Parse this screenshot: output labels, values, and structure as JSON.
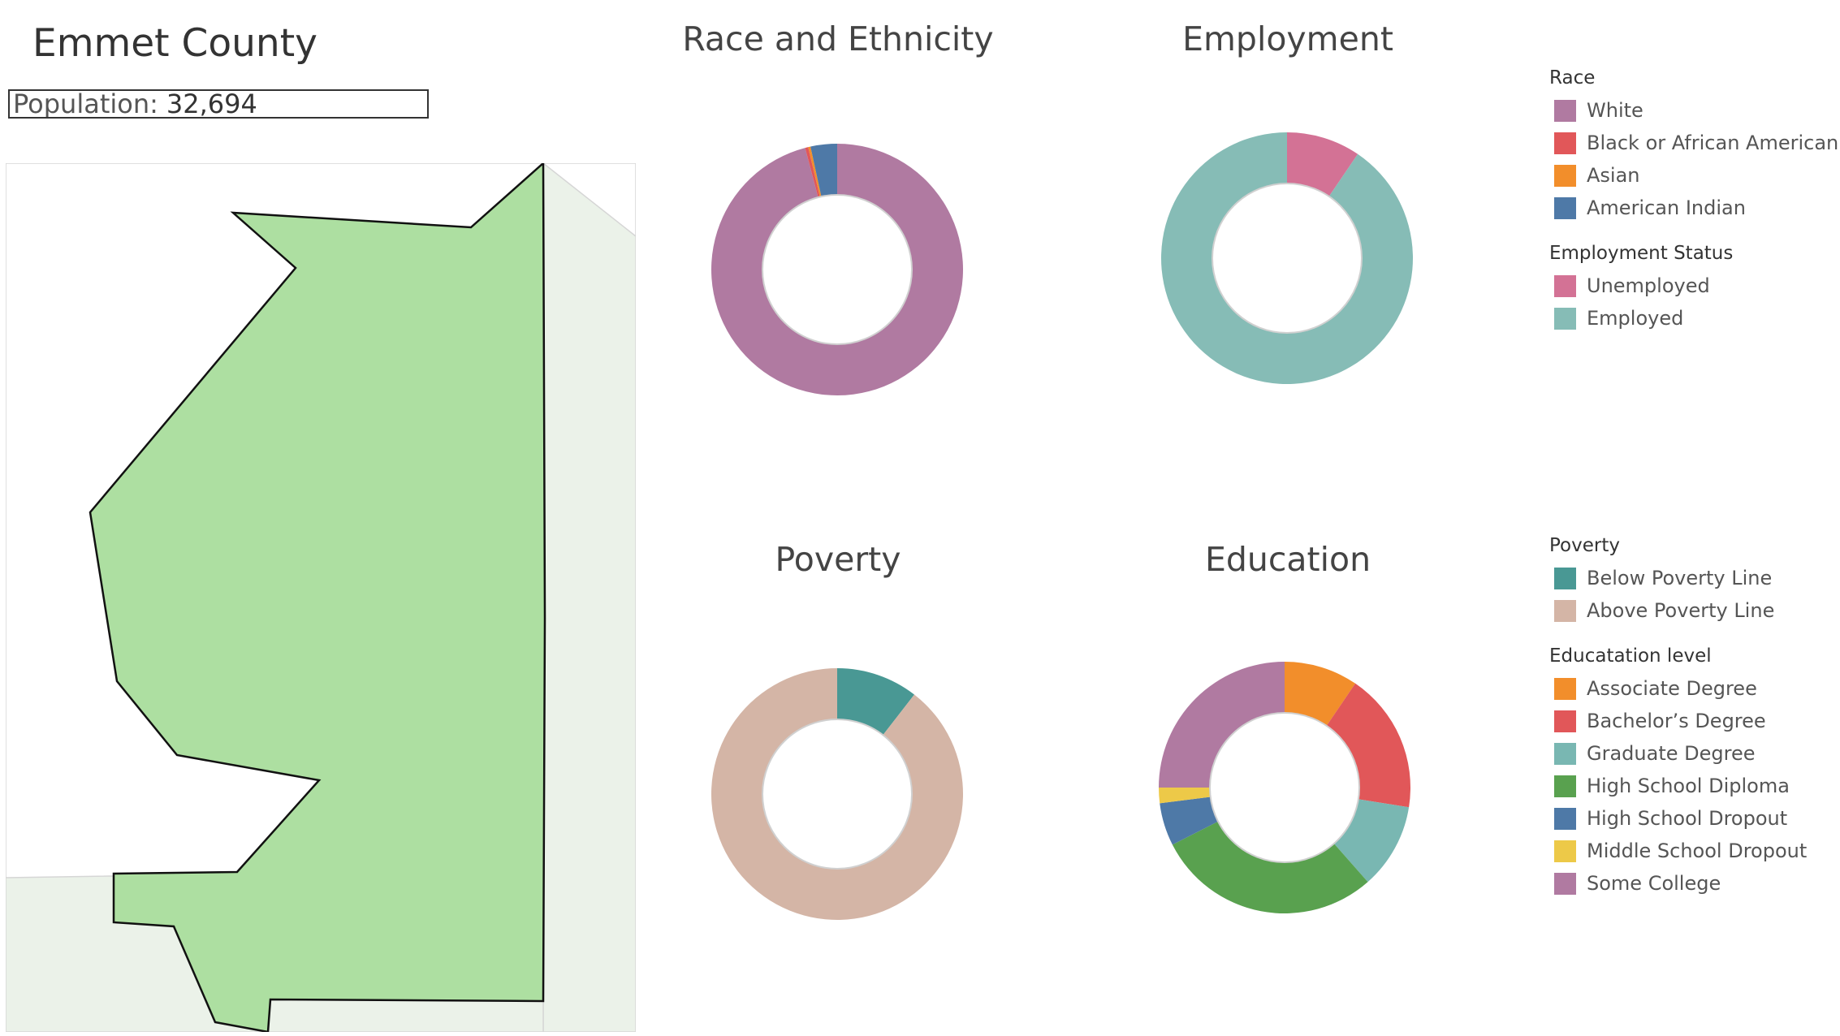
{
  "county": {
    "name": "Emmet County",
    "population_label": "Population:",
    "population_value": "32,694"
  },
  "chart_data": [
    {
      "type": "pie",
      "variant": "donut",
      "title": "Race and Ethnicity",
      "categories": [
        "White",
        "Black or African American",
        "Asian",
        "American Indian"
      ],
      "values": [
        95.9,
        0.4,
        0.3,
        3.4
      ],
      "unit": "percent",
      "colors": [
        "#b07aa1",
        "#e15759",
        "#f28e2b",
        "#4e79a7"
      ]
    },
    {
      "type": "pie",
      "variant": "donut",
      "title": "Employment",
      "categories": [
        "Unemployed",
        "Employed"
      ],
      "values": [
        9.5,
        90.5
      ],
      "unit": "percent",
      "colors": [
        "#d37295",
        "#86bcb6"
      ]
    },
    {
      "type": "pie",
      "variant": "donut",
      "title": "Poverty",
      "categories": [
        "Below Poverty Line",
        "Above Poverty Line"
      ],
      "values": [
        10.5,
        89.5
      ],
      "unit": "percent",
      "colors": [
        "#499894",
        "#d4b5a6"
      ]
    },
    {
      "type": "pie",
      "variant": "donut",
      "title": "Education",
      "categories": [
        "Associate Degree",
        "Bachelor's Degree",
        "Graduate Degree",
        "High School Diploma",
        "High School Dropout",
        "Middle School Dropout",
        "Some College"
      ],
      "values": [
        9.5,
        18,
        11,
        29,
        5.5,
        2,
        25
      ],
      "unit": "percent",
      "colors": [
        "#f28e2b",
        "#e15759",
        "#79b7b2",
        "#59a14f",
        "#4e79a7",
        "#edc948",
        "#b07aa1"
      ]
    }
  ],
  "legends": [
    {
      "heading": "Race",
      "items": [
        {
          "label": "White",
          "color": "#b07aa1"
        },
        {
          "label": "Black or African American",
          "color": "#e15759"
        },
        {
          "label": "Asian",
          "color": "#f28e2b"
        },
        {
          "label": "American Indian",
          "color": "#4e79a7"
        }
      ]
    },
    {
      "heading": "Employment Status",
      "items": [
        {
          "label": "Unemployed",
          "color": "#d37295"
        },
        {
          "label": "Employed",
          "color": "#86bcb6"
        }
      ]
    },
    {
      "heading": "Poverty",
      "items": [
        {
          "label": "Below Poverty Line",
          "color": "#499894"
        },
        {
          "label": "Above Poverty Line",
          "color": "#d4b5a6"
        }
      ]
    },
    {
      "heading": "Educatation level",
      "items": [
        {
          "label": "Associate Degree",
          "color": "#f28e2b"
        },
        {
          "label": "Bachelor’s Degree",
          "color": "#e15759"
        },
        {
          "label": "Graduate Degree",
          "color": "#79b7b2"
        },
        {
          "label": "High School Diploma",
          "color": "#59a14f"
        },
        {
          "label": "High School Dropout",
          "color": "#4e79a7"
        },
        {
          "label": "Middle School Dropout",
          "color": "#edc948"
        },
        {
          "label": "Some College",
          "color": "#b07aa1"
        }
      ]
    }
  ],
  "map": {
    "county_fill": "#addfa1",
    "neighbor_fill": "#ebf2e9"
  }
}
